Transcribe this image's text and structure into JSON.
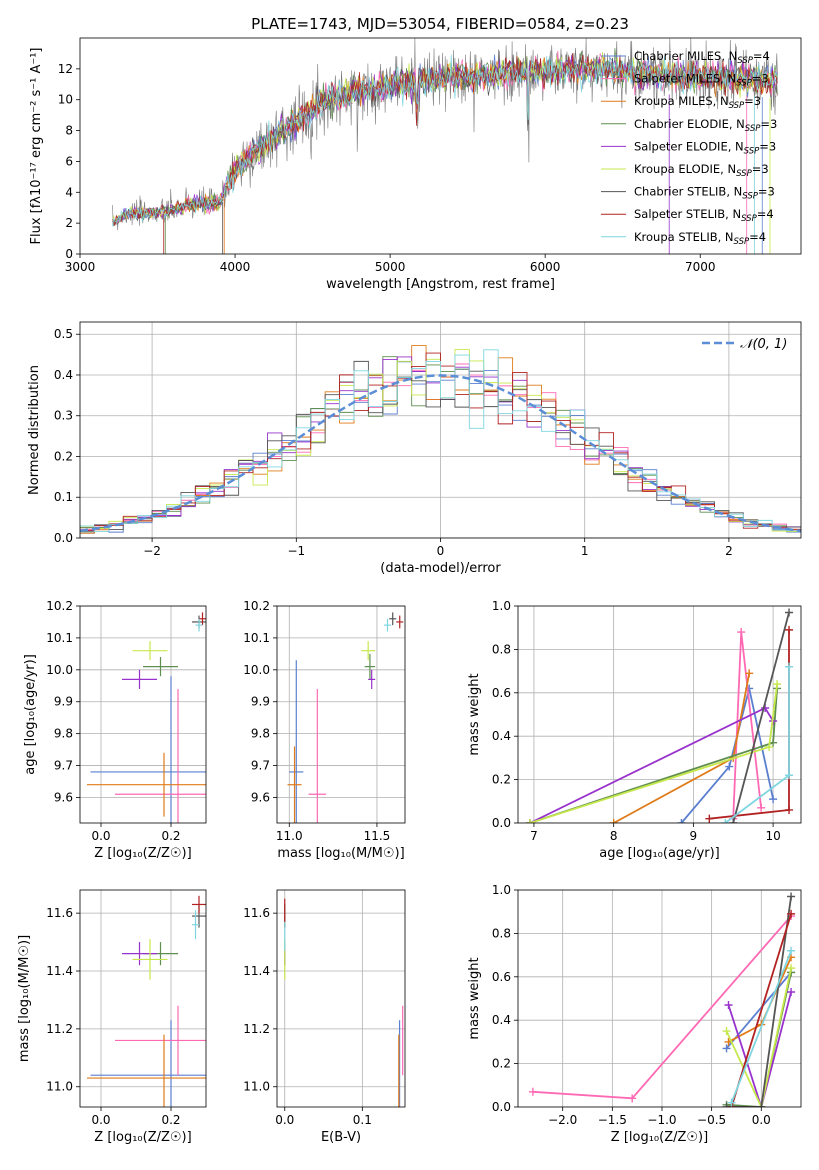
{
  "figure": {
    "title": "PLATE=1743, MJD=53054, FIBERID=0584, z=0.23"
  },
  "chart_data": [
    {
      "type": "line",
      "title": "PLATE=1743, MJD=53054, FIBERID=0584, z=0.23",
      "xlabel": "wavelength [Angstrom, rest frame]",
      "ylabel": "Flux [fλ10⁻¹⁷ erg cm⁻² s⁻¹ A⁻¹]",
      "xlim": [
        3000,
        7650
      ],
      "ylim": [
        0,
        14
      ],
      "xticks": [
        3000,
        4000,
        5000,
        6000,
        7000
      ],
      "yticks": [
        0,
        2,
        4,
        6,
        8,
        10,
        12
      ],
      "grid": false,
      "legend_position": "top-right",
      "wl_range": [
        3210,
        7500
      ],
      "continuum_anchors": [
        [
          3210,
          2.0
        ],
        [
          3300,
          2.6
        ],
        [
          3550,
          2.7
        ],
        [
          3700,
          3.2
        ],
        [
          3900,
          3.3
        ],
        [
          4000,
          5.5
        ],
        [
          4300,
          8.0
        ],
        [
          4600,
          10.0
        ],
        [
          5000,
          11.0
        ],
        [
          5500,
          11.5
        ],
        [
          5900,
          11.8
        ],
        [
          6300,
          12.0
        ],
        [
          6800,
          11.5
        ],
        [
          7200,
          11.5
        ],
        [
          7500,
          11.2
        ]
      ],
      "series": [
        {
          "name": "Chabrier MILES, N_SSP=4",
          "color": "#5b7fcf"
        },
        {
          "name": "Salpeter MILES, N_SSP=3",
          "color": "#ff69b4"
        },
        {
          "name": "Kroupa MILES, N_SSP=3",
          "color": "#e07b1a"
        },
        {
          "name": "Chabrier ELODIE, N_SSP=3",
          "color": "#5f8f4f"
        },
        {
          "name": "Salpeter ELODIE, N_SSP=3",
          "color": "#9932cc"
        },
        {
          "name": "Kroupa ELODIE, N_SSP=3",
          "color": "#c7e84d"
        },
        {
          "name": "Chabrier STELIB, N_SSP=3",
          "color": "#555555"
        },
        {
          "name": "Salpeter STELIB, N_SSP=4",
          "color": "#b22222"
        },
        {
          "name": "Kroupa STELIB, N_SSP=4",
          "color": "#7fd6e0"
        }
      ],
      "observed_color": "#777777"
    },
    {
      "type": "line",
      "xlabel": "(data-model)/error",
      "ylabel": "Normed distribution",
      "xlim": [
        -2.5,
        2.5
      ],
      "ylim": [
        0,
        0.53
      ],
      "xticks": [
        -2,
        -1,
        0,
        1,
        2
      ],
      "yticks": [
        0.0,
        0.1,
        0.2,
        0.3,
        0.4,
        0.5
      ],
      "grid": true,
      "legend_position": "top-right",
      "legend": "𝒩(0, 1)",
      "bin_width": 0.1,
      "gaussian": {
        "mu": 0,
        "sigma": 1,
        "color": "#5b8ed6"
      },
      "series_colors": [
        "#5b7fcf",
        "#ff69b4",
        "#e07b1a",
        "#5f8f4f",
        "#9932cc",
        "#c7e84d",
        "#555555",
        "#b22222",
        "#7fd6e0"
      ]
    },
    {
      "type": "scatter",
      "xlabel": "Z [log₁₀(Z/Z☉)]",
      "ylabel": "age  [log₁₀(age/yr)]",
      "xlim": [
        -0.06,
        0.3
      ],
      "ylim": [
        9.52,
        10.2
      ],
      "xticks": [
        0.0,
        0.2
      ],
      "xticklabels": [
        "0.0",
        "0.2"
      ],
      "yticks": [
        9.6,
        9.7,
        9.8,
        9.9,
        10.0,
        10.1,
        10.2
      ],
      "grid": true,
      "points": [
        {
          "x": 0.2,
          "y": 9.68,
          "xerr": 0.23,
          "yerr": 0.3,
          "color": "#5b7fcf"
        },
        {
          "x": 0.22,
          "y": 9.61,
          "xerr": 0.18,
          "yerr": 0.33,
          "color": "#ff69b4"
        },
        {
          "x": 0.18,
          "y": 9.64,
          "xerr": 0.22,
          "yerr": 0.1,
          "color": "#e07b1a"
        },
        {
          "x": 0.17,
          "y": 10.01,
          "xerr": 0.05,
          "yerr": 0.03,
          "color": "#5f8f4f"
        },
        {
          "x": 0.11,
          "y": 9.97,
          "xerr": 0.05,
          "yerr": 0.03,
          "color": "#9932cc"
        },
        {
          "x": 0.14,
          "y": 10.06,
          "xerr": 0.05,
          "yerr": 0.03,
          "color": "#c7e84d"
        },
        {
          "x": 0.28,
          "y": 10.15,
          "xerr": 0.02,
          "yerr": 0.02,
          "color": "#555555"
        },
        {
          "x": 0.29,
          "y": 10.16,
          "xerr": 0.01,
          "yerr": 0.02,
          "color": "#b22222"
        },
        {
          "x": 0.28,
          "y": 10.14,
          "xerr": 0.01,
          "yerr": 0.02,
          "color": "#7fd6e0"
        }
      ]
    },
    {
      "type": "scatter",
      "xlabel": "mass [log₁₀(M/M☉)]",
      "xlim": [
        10.93,
        11.66
      ],
      "ylim": [
        9.52,
        10.2
      ],
      "xticks": [
        11.0,
        11.5
      ],
      "xticklabels": [
        "11.0",
        "11.5"
      ],
      "yticks": [
        9.6,
        9.7,
        9.8,
        9.9,
        10.0,
        10.1,
        10.2
      ],
      "grid": true,
      "points": [
        {
          "x": 11.04,
          "y": 9.68,
          "xerr": 0.04,
          "yerr": 0.35,
          "color": "#5b7fcf"
        },
        {
          "x": 11.16,
          "y": 9.61,
          "xerr": 0.05,
          "yerr": 0.33,
          "color": "#ff69b4"
        },
        {
          "x": 11.03,
          "y": 9.64,
          "xerr": 0.04,
          "yerr": 0.12,
          "color": "#e07b1a"
        },
        {
          "x": 11.46,
          "y": 10.01,
          "xerr": 0.03,
          "yerr": 0.04,
          "color": "#5f8f4f"
        },
        {
          "x": 11.47,
          "y": 9.97,
          "xerr": 0.02,
          "yerr": 0.03,
          "color": "#9932cc"
        },
        {
          "x": 11.45,
          "y": 10.06,
          "xerr": 0.04,
          "yerr": 0.03,
          "color": "#c7e84d"
        },
        {
          "x": 11.59,
          "y": 10.16,
          "xerr": 0.02,
          "yerr": 0.02,
          "color": "#555555"
        },
        {
          "x": 11.63,
          "y": 10.15,
          "xerr": 0.02,
          "yerr": 0.02,
          "color": "#b22222"
        },
        {
          "x": 11.56,
          "y": 10.14,
          "xerr": 0.02,
          "yerr": 0.02,
          "color": "#7fd6e0"
        }
      ]
    },
    {
      "type": "line",
      "xlabel": "age  [log₁₀(age/yr)]",
      "ylabel": "mass weight",
      "xlim": [
        6.8,
        10.35
      ],
      "ylim": [
        0,
        1.0
      ],
      "xticks": [
        7,
        8,
        9,
        10
      ],
      "yticks": [
        0.0,
        0.2,
        0.4,
        0.6,
        0.8,
        1.0
      ],
      "grid": true,
      "series": [
        {
          "color": "#5b7fcf",
          "points": [
            [
              8.85,
              0.0
            ],
            [
              9.45,
              0.26
            ],
            [
              9.7,
              0.62
            ],
            [
              10.0,
              0.11
            ]
          ]
        },
        {
          "color": "#ff69b4",
          "points": [
            [
              9.5,
              0.02
            ],
            [
              9.6,
              0.88
            ],
            [
              9.85,
              0.07
            ]
          ]
        },
        {
          "color": "#e07b1a",
          "points": [
            [
              8.0,
              0.0
            ],
            [
              9.5,
              0.3
            ],
            [
              9.7,
              0.69
            ]
          ]
        },
        {
          "color": "#5f8f4f",
          "points": [
            [
              6.95,
              0.0
            ],
            [
              10.0,
              0.37
            ],
            [
              10.05,
              0.62
            ]
          ]
        },
        {
          "color": "#9932cc",
          "points": [
            [
              6.95,
              0.0
            ],
            [
              9.9,
              0.53
            ],
            [
              10.0,
              0.47
            ]
          ]
        },
        {
          "color": "#c7e84d",
          "points": [
            [
              6.95,
              0.0
            ],
            [
              9.95,
              0.35
            ],
            [
              10.05,
              0.64
            ]
          ]
        },
        {
          "color": "#555555",
          "points": [
            [
              9.5,
              0.0
            ],
            [
              10.2,
              0.97
            ]
          ]
        },
        {
          "color": "#b22222",
          "points": [
            [
              9.2,
              0.02
            ],
            [
              10.2,
              0.06
            ],
            [
              10.2,
              0.89
            ]
          ]
        },
        {
          "color": "#7fd6e0",
          "points": [
            [
              9.4,
              0.0
            ],
            [
              10.2,
              0.22
            ],
            [
              10.2,
              0.72
            ]
          ]
        }
      ]
    },
    {
      "type": "scatter",
      "xlabel": "Z [log₁₀(Z/Z☉)]",
      "ylabel": "mass [log₁₀(M/M☉)]",
      "xlim": [
        -0.06,
        0.3
      ],
      "ylim": [
        10.93,
        11.68
      ],
      "xticks": [
        0.0,
        0.2
      ],
      "xticklabels": [
        "0.0",
        "0.2"
      ],
      "yticks": [
        11.0,
        11.2,
        11.4,
        11.6
      ],
      "grid": true,
      "points": [
        {
          "x": 0.2,
          "y": 11.04,
          "xerr": 0.23,
          "yerr": 0.19,
          "color": "#5b7fcf"
        },
        {
          "x": 0.22,
          "y": 11.16,
          "xerr": 0.18,
          "yerr": 0.12,
          "color": "#ff69b4"
        },
        {
          "x": 0.18,
          "y": 11.03,
          "xerr": 0.22,
          "yerr": 0.15,
          "color": "#e07b1a"
        },
        {
          "x": 0.17,
          "y": 11.46,
          "xerr": 0.05,
          "yerr": 0.04,
          "color": "#5f8f4f"
        },
        {
          "x": 0.11,
          "y": 11.46,
          "xerr": 0.05,
          "yerr": 0.04,
          "color": "#9932cc"
        },
        {
          "x": 0.14,
          "y": 11.44,
          "xerr": 0.05,
          "yerr": 0.07,
          "color": "#c7e84d"
        },
        {
          "x": 0.28,
          "y": 11.59,
          "xerr": 0.02,
          "yerr": 0.04,
          "color": "#555555"
        },
        {
          "x": 0.28,
          "y": 11.63,
          "xerr": 0.02,
          "yerr": 0.03,
          "color": "#b22222"
        },
        {
          "x": 0.27,
          "y": 11.56,
          "xerr": 0.01,
          "yerr": 0.05,
          "color": "#7fd6e0"
        }
      ]
    },
    {
      "type": "scatter",
      "xlabel": "E(B-V)",
      "xlim": [
        -0.01,
        0.155
      ],
      "ylim": [
        10.93,
        11.68
      ],
      "xticks": [
        0.0,
        0.1
      ],
      "xticklabels": [
        "0.0",
        "0.1"
      ],
      "yticks": [
        11.0,
        11.2,
        11.4,
        11.6
      ],
      "grid": true,
      "points": [
        {
          "x": 0.148,
          "y": 11.04,
          "xerr": 0.0,
          "yerr": 0.19,
          "color": "#5b7fcf"
        },
        {
          "x": 0.152,
          "y": 11.16,
          "xerr": 0.0,
          "yerr": 0.12,
          "color": "#ff69b4"
        },
        {
          "x": 0.147,
          "y": 11.03,
          "xerr": 0.0,
          "yerr": 0.15,
          "color": "#e07b1a"
        },
        {
          "x": 0.0,
          "y": 11.46,
          "xerr": 0.0,
          "yerr": 0.04,
          "color": "#5f8f4f"
        },
        {
          "x": 0.0,
          "y": 11.46,
          "xerr": 0.0,
          "yerr": 0.04,
          "color": "#9932cc"
        },
        {
          "x": 0.0,
          "y": 11.44,
          "xerr": 0.0,
          "yerr": 0.07,
          "color": "#c7e84d"
        },
        {
          "x": 0.0,
          "y": 11.59,
          "xerr": 0.0,
          "yerr": 0.04,
          "color": "#555555"
        },
        {
          "x": 0.0,
          "y": 11.6,
          "xerr": 0.0,
          "yerr": 0.05,
          "color": "#b22222"
        },
        {
          "x": 0.0,
          "y": 11.52,
          "xerr": 0.0,
          "yerr": 0.05,
          "color": "#7fd6e0"
        }
      ]
    },
    {
      "type": "line",
      "xlabel": "Z [log₁₀(Z/Z☉)]",
      "ylabel": "mass weight",
      "xlim": [
        -2.45,
        0.4
      ],
      "ylim": [
        0,
        1.0
      ],
      "xticks": [
        -2.0,
        -1.5,
        -1.0,
        -0.5,
        0.0
      ],
      "xticklabels": [
        "−2.0",
        "−1.5",
        "−1.0",
        "−0.5",
        "0.0"
      ],
      "yticks": [
        0.0,
        0.2,
        0.4,
        0.6,
        0.8,
        1.0
      ],
      "grid": true,
      "series": [
        {
          "color": "#ff69b4",
          "points": [
            [
              -2.3,
              0.07
            ],
            [
              -1.3,
              0.04
            ],
            [
              0.3,
              0.88
            ]
          ]
        },
        {
          "color": "#5b7fcf",
          "points": [
            [
              -0.35,
              0.27
            ],
            [
              0.3,
              0.62
            ]
          ]
        },
        {
          "color": "#e07b1a",
          "points": [
            [
              -0.33,
              0.3
            ],
            [
              0.0,
              0.38
            ],
            [
              0.3,
              0.69
            ]
          ]
        },
        {
          "color": "#5f8f4f",
          "points": [
            [
              -0.35,
              0.01
            ],
            [
              0.0,
              0.0
            ],
            [
              0.3,
              0.62
            ]
          ]
        },
        {
          "color": "#9932cc",
          "points": [
            [
              -0.33,
              0.47
            ],
            [
              0.0,
              0.0
            ],
            [
              0.3,
              0.53
            ]
          ]
        },
        {
          "color": "#c7e84d",
          "points": [
            [
              -0.35,
              0.35
            ],
            [
              0.0,
              0.0
            ],
            [
              0.3,
              0.64
            ]
          ]
        },
        {
          "color": "#555555",
          "points": [
            [
              -0.35,
              0.0
            ],
            [
              0.0,
              0.0
            ],
            [
              0.3,
              0.97
            ]
          ]
        },
        {
          "color": "#b22222",
          "points": [
            [
              -0.3,
              0.0
            ],
            [
              0.3,
              0.89
            ]
          ]
        },
        {
          "color": "#7fd6e0",
          "points": [
            [
              -0.3,
              0.02
            ],
            [
              0.3,
              0.72
            ]
          ]
        }
      ]
    }
  ]
}
